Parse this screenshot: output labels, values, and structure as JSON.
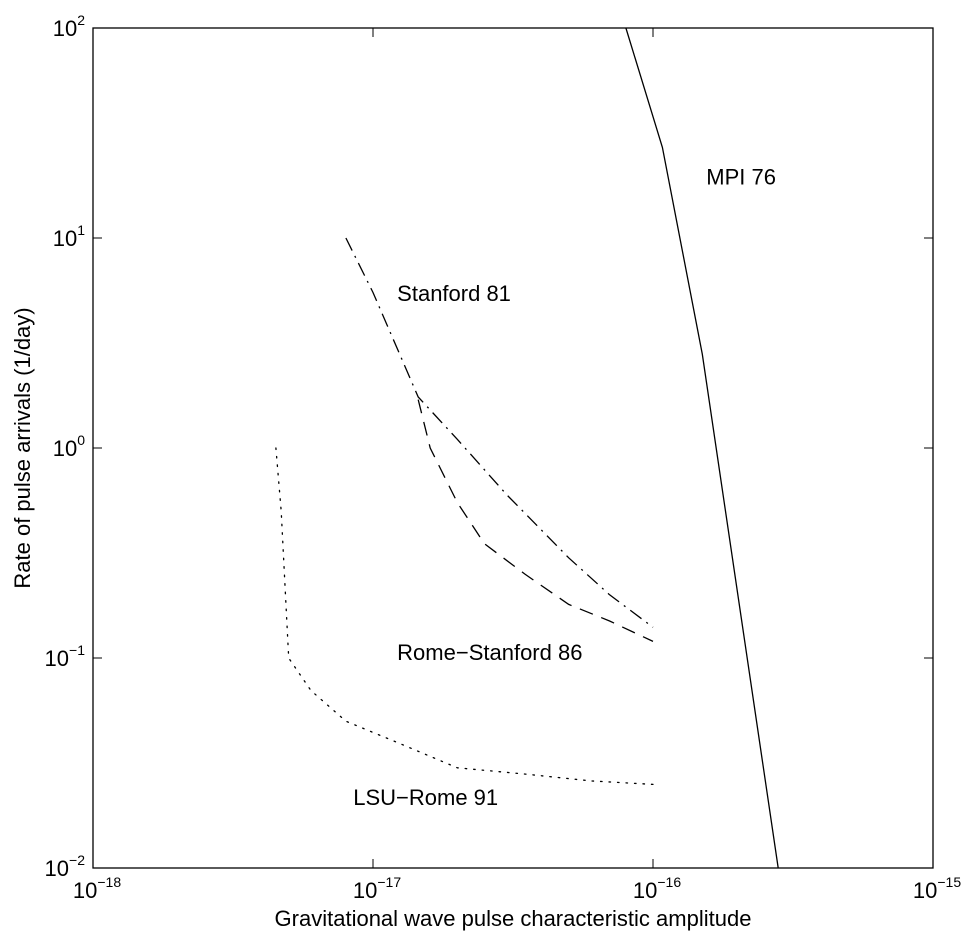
{
  "chart_data": {
    "type": "line",
    "title": "",
    "xlabel": "Gravitational wave pulse characteristic amplitude",
    "ylabel": "Rate of pulse arrivals (1/day)",
    "xscale": "log",
    "yscale": "log",
    "xlim": [
      1e-18,
      1e-15
    ],
    "ylim": [
      0.01,
      100
    ],
    "grid": false,
    "xticks": [
      {
        "value": 1e-18,
        "base": "10",
        "exp": "−18"
      },
      {
        "value": 1e-17,
        "base": "10",
        "exp": "−17"
      },
      {
        "value": 1e-16,
        "base": "10",
        "exp": "−16"
      },
      {
        "value": 1e-15,
        "base": "10",
        "exp": "−15"
      }
    ],
    "yticks": [
      {
        "value": 0.01,
        "base": "10",
        "exp": "−2"
      },
      {
        "value": 0.1,
        "base": "10",
        "exp": "−1"
      },
      {
        "value": 1,
        "base": "10",
        "exp": "0"
      },
      {
        "value": 10,
        "base": "10",
        "exp": "1"
      },
      {
        "value": 100,
        "base": "10",
        "exp": "2"
      }
    ],
    "series": [
      {
        "name": "MPI 76",
        "style": "solid",
        "x": [
          8e-17,
          1.08e-16,
          1.5e-16,
          2.8e-16
        ],
        "y": [
          100,
          27,
          2.8,
          0.01
        ]
      },
      {
        "name": "Stanford 81",
        "style": "dashdot",
        "x": [
          8e-18,
          1e-17,
          1.45e-17,
          2e-17,
          3e-17,
          5e-17,
          7e-17,
          1e-16
        ],
        "y": [
          10,
          5.5,
          1.75,
          1.1,
          0.6,
          0.3,
          0.2,
          0.14
        ]
      },
      {
        "name": "Rome−Stanford 86",
        "style": "dashed",
        "x": [
          1.45e-17,
          1.6e-17,
          2e-17,
          2.5e-17,
          3.5e-17,
          5e-17,
          7e-17,
          1e-16
        ],
        "y": [
          1.7,
          1.0,
          0.55,
          0.35,
          0.25,
          0.18,
          0.15,
          0.12
        ]
      },
      {
        "name": "LSU−Rome 91",
        "style": "dotted",
        "x": [
          4.5e-18,
          4.7e-18,
          5e-18,
          6e-18,
          8e-18,
          1.2e-17,
          2e-17,
          3.5e-17,
          6e-17,
          1e-16
        ],
        "y": [
          1.0,
          0.5,
          0.1,
          0.07,
          0.05,
          0.04,
          0.03,
          0.028,
          0.026,
          0.025
        ]
      }
    ],
    "annotations": [
      {
        "text": "MPI 76",
        "x": 1.55e-16,
        "y": 18
      },
      {
        "text": "Stanford 81",
        "x": 1.22e-17,
        "y": 5.0
      },
      {
        "text": "Rome−Stanford 86",
        "x": 1.22e-17,
        "y": 0.098
      },
      {
        "text": "LSU−Rome 91",
        "x": 8.5e-18,
        "y": 0.02
      }
    ]
  }
}
